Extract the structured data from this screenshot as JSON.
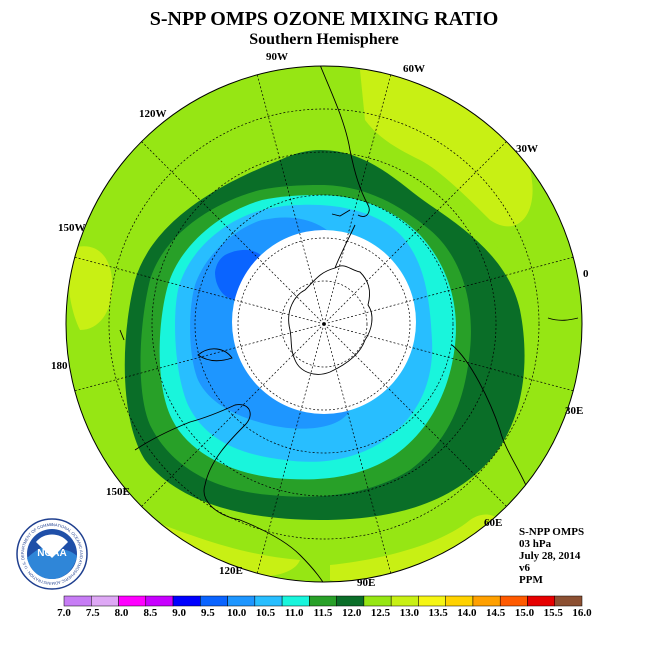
{
  "title": "S-NPP OMPS OZONE MIXING RATIO",
  "subtitle": "Southern Hemisphere",
  "meridian_labels": [
    "90W",
    "60W",
    "30W",
    "0",
    "30E",
    "60E",
    "90E",
    "120E",
    "150E",
    "180",
    "150W",
    "120W"
  ],
  "info": {
    "instrument": "S-NPP OMPS",
    "level": "03 hPa",
    "date": "July 28, 2014",
    "version": "v6",
    "units": "PPM"
  },
  "logo": {
    "text": "NOAA",
    "ring_text": "NATIONAL OCEANIC AND ATMOSPHERIC ADMINISTRATION · U.S. DEPARTMENT OF COMMERCE",
    "icon": "noaa-logo"
  },
  "colorbar": {
    "ticks": [
      "7.0",
      "7.5",
      "8.0",
      "8.5",
      "9.0",
      "9.5",
      "10.0",
      "10.5",
      "11.0",
      "11.5",
      "12.0",
      "12.5",
      "13.0",
      "13.5",
      "14.0",
      "14.5",
      "15.0",
      "15.5",
      "16.0"
    ],
    "colors": [
      "#c77df5",
      "#dea8f5",
      "#ff00ff",
      "#c800ff",
      "#0000ff",
      "#0a64ff",
      "#1e96ff",
      "#28beff",
      "#19f5dc",
      "#28a028",
      "#0a6e28",
      "#96e614",
      "#c8f014",
      "#f5f514",
      "#ffd200",
      "#ffa000",
      "#ff5a00",
      "#e60000",
      "#8c5032"
    ]
  },
  "contour_levels": [
    {
      "level": "12.5",
      "color": "#c8f014"
    },
    {
      "level": "12.0",
      "color": "#96e614"
    },
    {
      "level": "11.5",
      "color": "#0a6e28"
    },
    {
      "level": "11.0",
      "color": "#28a028"
    },
    {
      "level": "10.5",
      "color": "#19f5dc"
    },
    {
      "level": "10.0",
      "color": "#28beff"
    },
    {
      "level": "9.5",
      "color": "#1e96ff"
    },
    {
      "level": "9.0",
      "color": "#0a64ff"
    }
  ]
}
